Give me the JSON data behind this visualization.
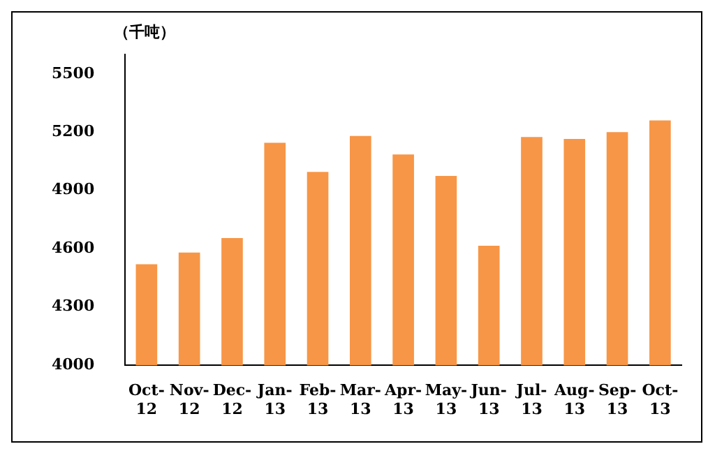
{
  "chart_data": {
    "type": "bar",
    "ylabel": "（千吨）",
    "categories": [
      "Oct-12",
      "Nov-12",
      "Dec-12",
      "Jan-13",
      "Feb-13",
      "Mar-13",
      "Apr-13",
      "May-13",
      "Jun-13",
      "Jul-13",
      "Aug-13",
      "Sep-13",
      "Oct-13"
    ],
    "values": [
      4520,
      4580,
      4655,
      5145,
      4995,
      5180,
      5085,
      4975,
      4615,
      5175,
      5165,
      5200,
      5260
    ],
    "color": "#f79646",
    "ylim": [
      4000,
      5600
    ],
    "yticks": [
      4000,
      4300,
      4600,
      4900,
      5200,
      5500
    ],
    "grid": false,
    "legend": false
  }
}
